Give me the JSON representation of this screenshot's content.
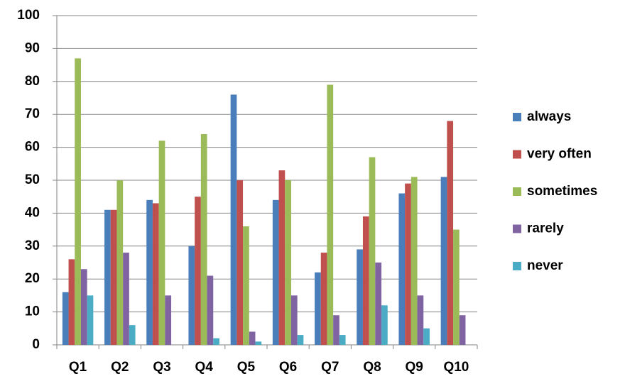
{
  "chart_data": {
    "type": "bar",
    "categories": [
      "Q1",
      "Q2",
      "Q3",
      "Q4",
      "Q5",
      "Q6",
      "Q7",
      "Q8",
      "Q9",
      "Q10"
    ],
    "series": [
      {
        "name": "always",
        "color": "#4a7ebb",
        "values": [
          16,
          41,
          44,
          30,
          76,
          44,
          22,
          29,
          46,
          51
        ]
      },
      {
        "name": "very often",
        "color": "#c0504d",
        "values": [
          26,
          41,
          43,
          45,
          50,
          53,
          28,
          39,
          49,
          68
        ]
      },
      {
        "name": "sometimes",
        "color": "#9bbb59",
        "values": [
          87,
          50,
          62,
          64,
          36,
          50,
          79,
          57,
          51,
          35
        ]
      },
      {
        "name": "rarely",
        "color": "#8064a2",
        "values": [
          23,
          28,
          15,
          21,
          4,
          15,
          9,
          25,
          15,
          9
        ]
      },
      {
        "name": "never",
        "color": "#4bacc6",
        "values": [
          15,
          6,
          0,
          2,
          1,
          3,
          3,
          12,
          5,
          0
        ]
      }
    ],
    "ylim": [
      0,
      100
    ],
    "yticks": [
      0,
      10,
      20,
      30,
      40,
      50,
      60,
      70,
      80,
      90,
      100
    ],
    "grid": true,
    "legend": "right"
  }
}
